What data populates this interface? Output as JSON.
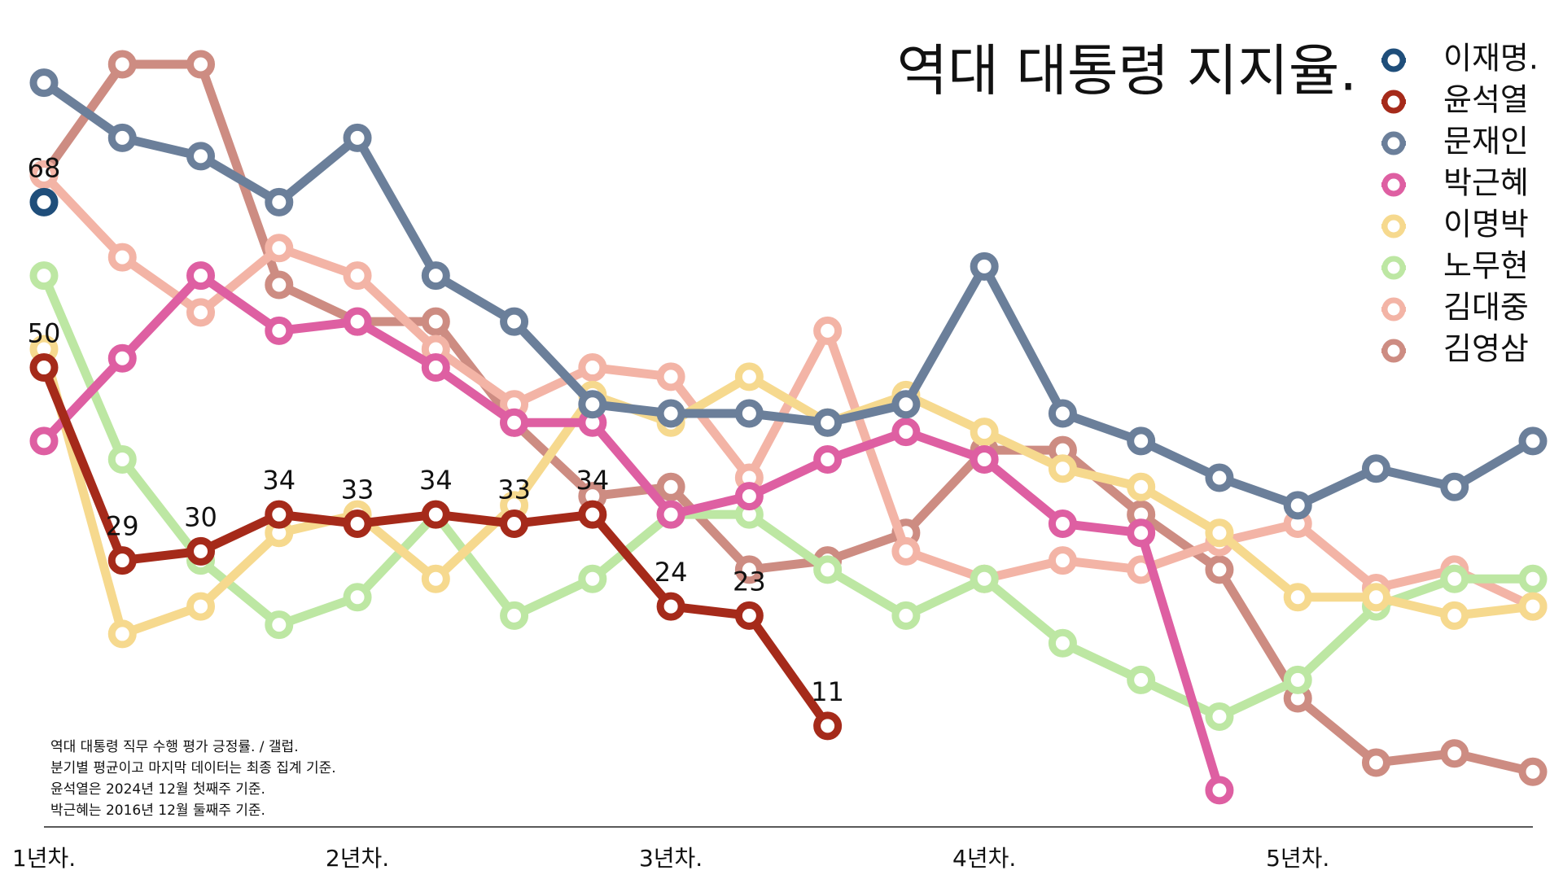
{
  "chart_data": {
    "type": "line",
    "title": "역대 대통령 지지율.",
    "annotations": [
      "역대 대통령 직무 수행 평가 긍정률. / 갤럽.",
      "분기별 평균이고 마지막 데이터는 최종 집계 기준.",
      "윤석열은 2024년 12월 첫째주 기준.",
      "박근혜는 2016년 12월 둘째주 기준."
    ],
    "x": [
      1,
      2,
      3,
      4,
      5,
      6,
      7,
      8,
      9,
      10,
      11,
      12,
      13,
      14,
      15,
      16,
      17,
      18,
      19,
      20
    ],
    "xlim": [
      1,
      20
    ],
    "xticks": [
      {
        "value": 1,
        "label": "1년차."
      },
      {
        "value": 5,
        "label": "2년차."
      },
      {
        "value": 9,
        "label": "3년차."
      },
      {
        "value": 13,
        "label": "4년차."
      },
      {
        "value": 17,
        "label": "5년차."
      }
    ],
    "ylim": [
      0,
      90
    ],
    "legend": "upper right",
    "series": [
      {
        "name": "이재명.",
        "color": "#1f4e7a",
        "show_values": true,
        "values": [
          68,
          null,
          null,
          null,
          null,
          null,
          null,
          null,
          null,
          null,
          null,
          null,
          null,
          null,
          null,
          null,
          null,
          null,
          null,
          null
        ]
      },
      {
        "name": "윤석열",
        "color": "#a52a1a",
        "show_values": true,
        "values": [
          50,
          29,
          30,
          34,
          33,
          34,
          33,
          34,
          24,
          23,
          11,
          null,
          null,
          null,
          null,
          null,
          null,
          null,
          null,
          null
        ]
      },
      {
        "name": "문재인",
        "color": "#6b7f9a",
        "values": [
          81,
          75,
          73,
          68,
          75,
          60,
          55,
          46,
          45,
          45,
          44,
          46,
          61,
          45,
          42,
          38,
          35,
          39,
          37,
          42
        ]
      },
      {
        "name": "박근혜",
        "color": "#de5fa2",
        "values": [
          42,
          51,
          60,
          54,
          55,
          50,
          44,
          44,
          34,
          36,
          40,
          43,
          40,
          33,
          32,
          4,
          null,
          null,
          null,
          null
        ]
      },
      {
        "name": "이명박",
        "color": "#f6d98e",
        "values": [
          52,
          21,
          24,
          32,
          34,
          27,
          35,
          47,
          44,
          49,
          44,
          47,
          43,
          39,
          37,
          32,
          25,
          25,
          23,
          24
        ]
      },
      {
        "name": "노무현",
        "color": "#bde7a3",
        "values": [
          60,
          40,
          29,
          22,
          25,
          34,
          23,
          27,
          34,
          34,
          28,
          23,
          27,
          20,
          16,
          12,
          16,
          24,
          27,
          27
        ]
      },
      {
        "name": "김대중",
        "color": "#f3b4a6",
        "values": [
          71,
          62,
          56,
          63,
          60,
          52,
          46,
          50,
          49,
          38,
          54,
          30,
          27,
          29,
          28,
          31,
          33,
          26,
          28,
          24
        ]
      },
      {
        "name": "김영삼",
        "color": "#cd8c82",
        "values": [
          71,
          83,
          83,
          59,
          55,
          55,
          44,
          36,
          37,
          28,
          29,
          32,
          41,
          41,
          34,
          28,
          14,
          7,
          8,
          6
        ]
      }
    ]
  }
}
